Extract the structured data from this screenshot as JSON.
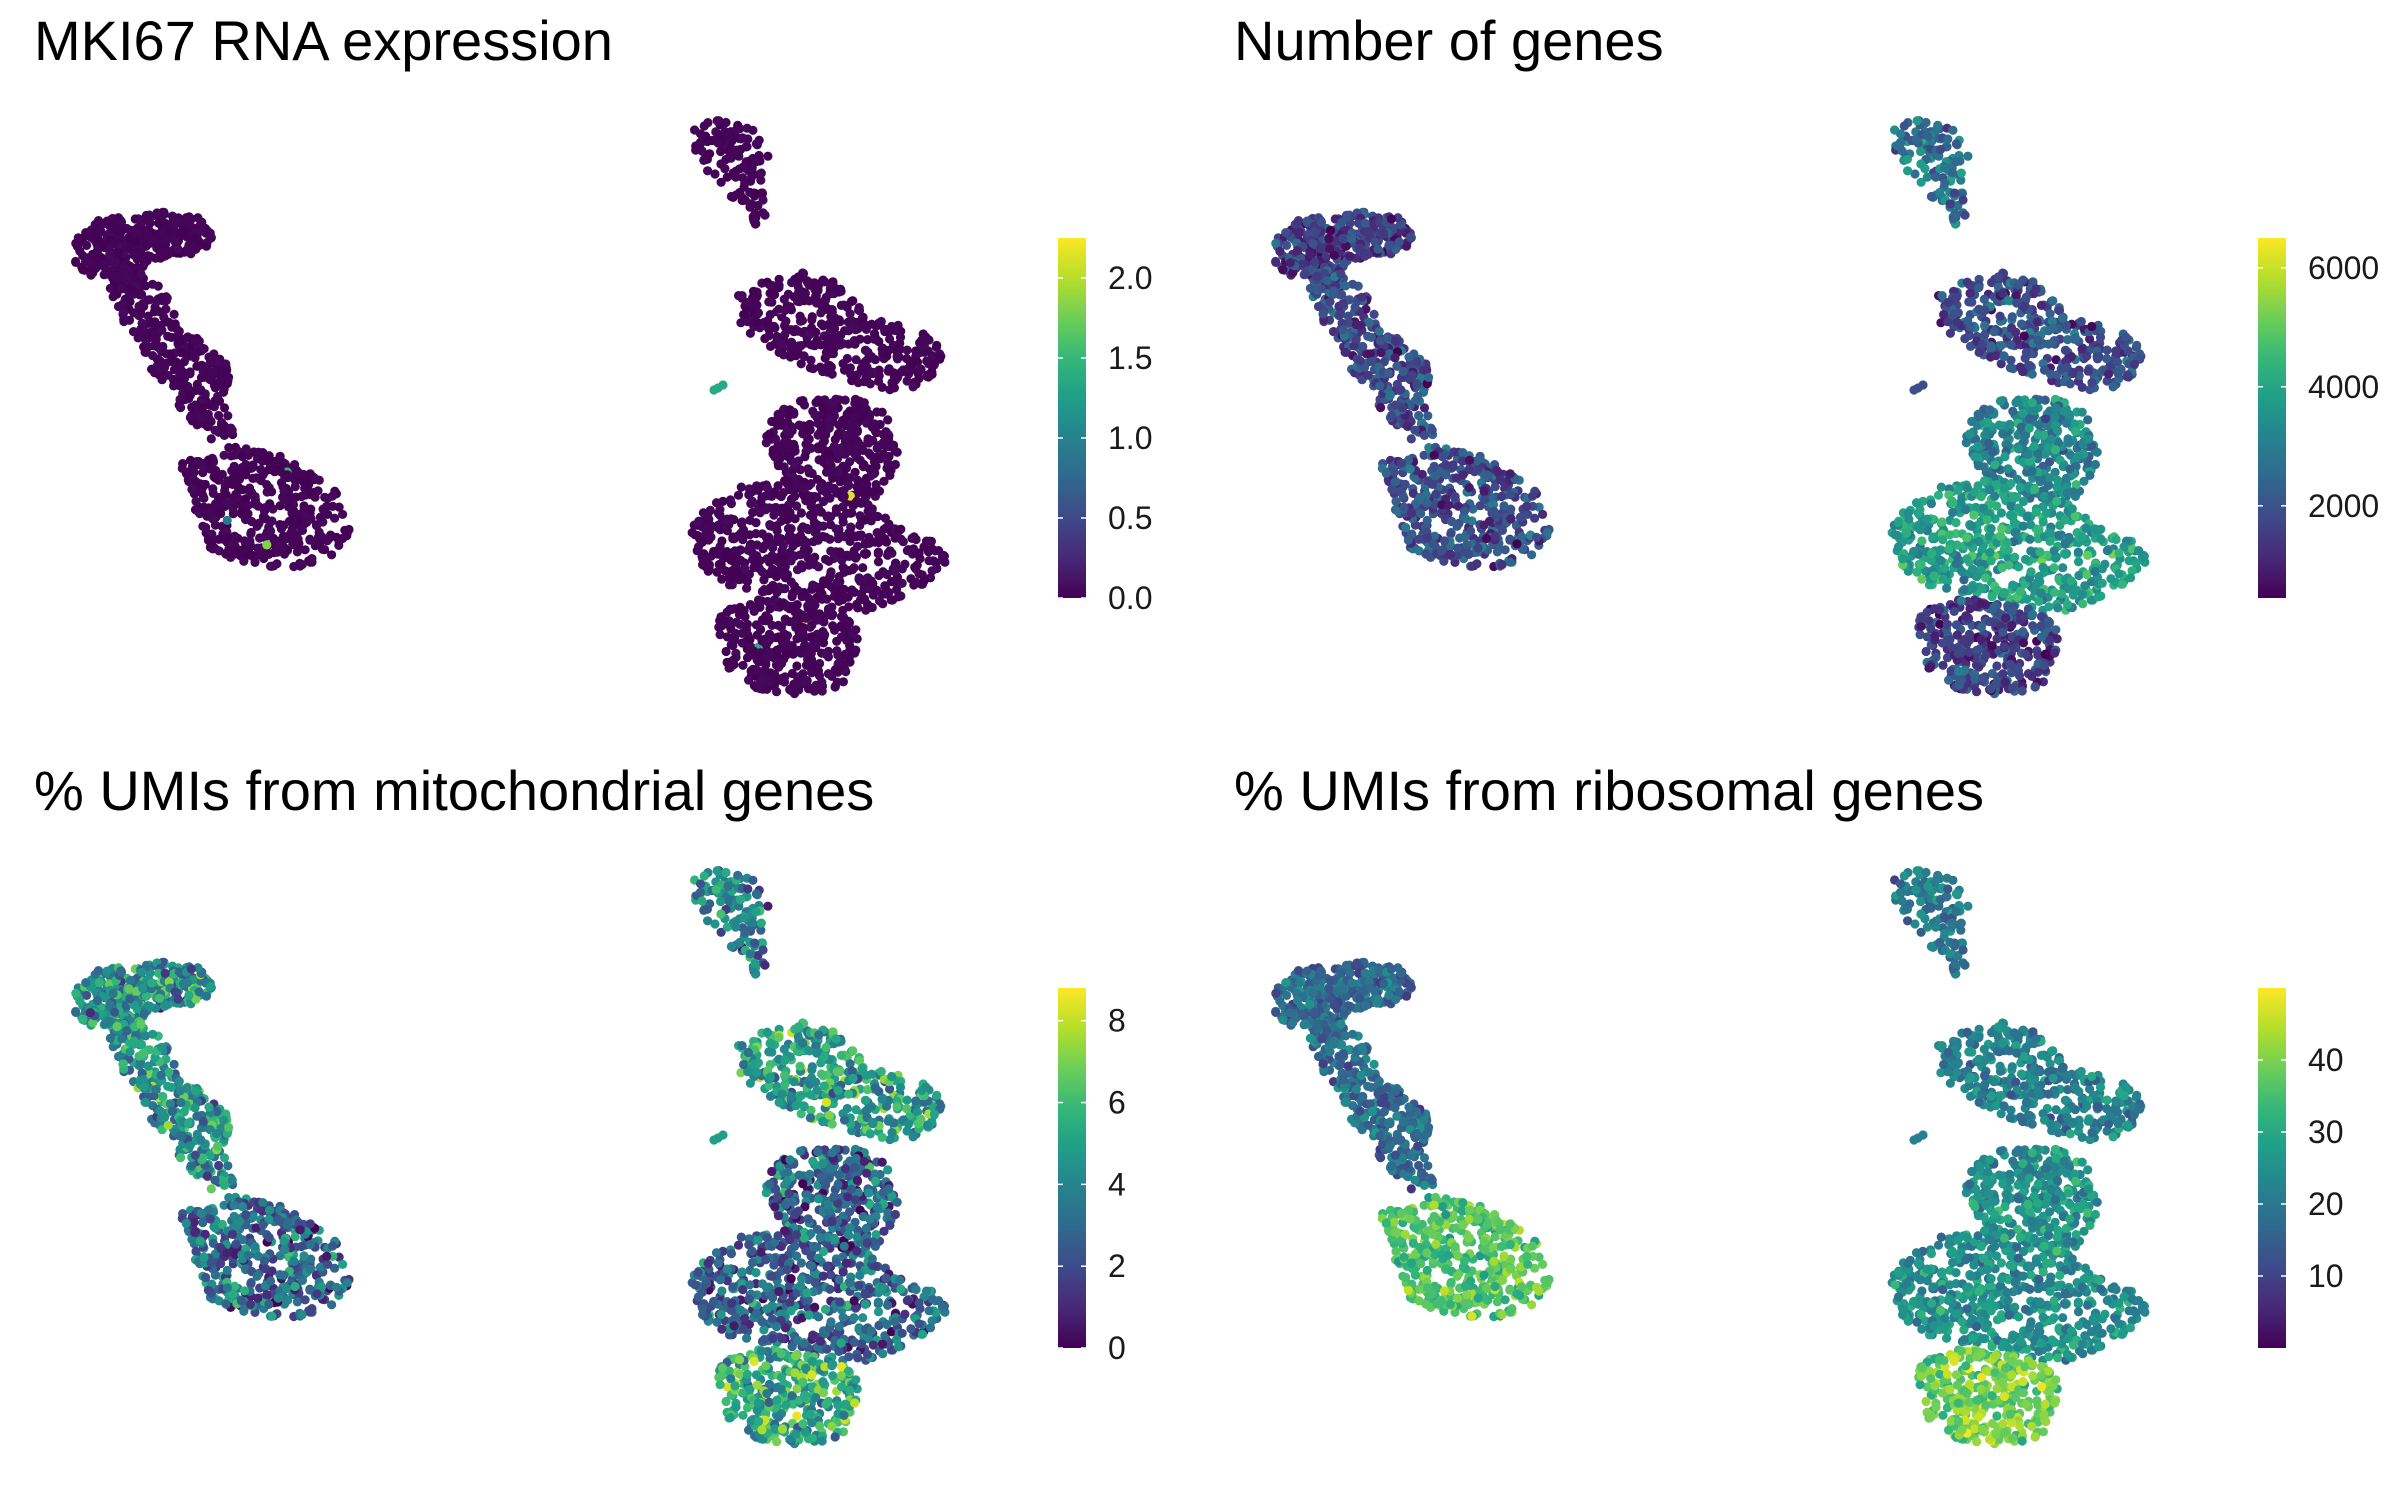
{
  "colors": {
    "viridis": [
      "#440154",
      "#482878",
      "#3e4a89",
      "#31688e",
      "#26828e",
      "#1f9e89",
      "#35b779",
      "#6ece58",
      "#b5de2b",
      "#fde725"
    ],
    "background": "#ffffff"
  },
  "chart_data": [
    {
      "type": "scatter",
      "title": "MKI67 RNA expression",
      "xlabel": "",
      "ylabel": "",
      "grid": false,
      "legend": "right",
      "colorbar": {
        "min": 0.0,
        "max": 2.25,
        "ticks": [
          0.0,
          0.5,
          1.0,
          1.5,
          2.0
        ],
        "tick_labels": [
          "0.0",
          "0.5",
          "1.0",
          "1.5",
          "2.0"
        ]
      },
      "color_profile": {
        "c1": 0.01,
        "c2": 0.01,
        "c3": 0.01,
        "c4": 0.01,
        "c5": 0.01,
        "c6": 0.01,
        "c7": 0.01,
        "c8": 0.01,
        "spread": 0.01,
        "sparse": 2.2
      }
    },
    {
      "type": "scatter",
      "title": "Number of genes",
      "xlabel": "",
      "ylabel": "",
      "grid": false,
      "legend": "right",
      "colorbar": {
        "min": 450,
        "max": 6500,
        "ticks": [
          2000,
          4000,
          6000
        ],
        "tick_labels": [
          "2000",
          "4000",
          "6000"
        ]
      },
      "color_profile": {
        "c1": 0.18,
        "c2": 0.22,
        "c3": 0.24,
        "c4": 0.36,
        "c5": 0.24,
        "c6": 0.45,
        "c7": 0.55,
        "c8": 0.18,
        "spread": 0.14,
        "sparse": 0
      }
    },
    {
      "type": "scatter",
      "title": "% UMIs from mitochondrial genes",
      "xlabel": "",
      "ylabel": "",
      "grid": false,
      "legend": "right",
      "colorbar": {
        "min": 0,
        "max": 8.8,
        "ticks": [
          0,
          2,
          4,
          6,
          8
        ],
        "tick_labels": [
          "0",
          "2",
          "4",
          "6",
          "8"
        ]
      },
      "color_profile": {
        "c1": 0.48,
        "c2": 0.5,
        "c3": 0.32,
        "c4": 0.45,
        "c5": 0.56,
        "c6": 0.3,
        "c7": 0.3,
        "c8": 0.62,
        "spread": 0.22,
        "sparse": 0
      }
    },
    {
      "type": "scatter",
      "title": "% UMIs from ribosomal genes",
      "xlabel": "",
      "ylabel": "",
      "grid": false,
      "legend": "right",
      "colorbar": {
        "min": 0,
        "max": 50,
        "ticks": [
          10,
          20,
          30,
          40
        ],
        "tick_labels": [
          "10",
          "20",
          "30",
          "40"
        ]
      },
      "color_profile": {
        "c1": 0.35,
        "c2": 0.36,
        "c3": 0.73,
        "c4": 0.4,
        "c5": 0.44,
        "c6": 0.5,
        "c7": 0.5,
        "c8": 0.78,
        "spread": 0.12,
        "sparse": 0
      }
    }
  ]
}
